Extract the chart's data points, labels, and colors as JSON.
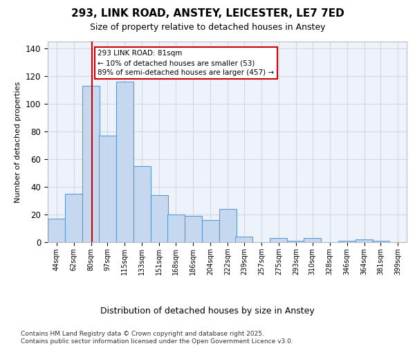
{
  "title_line1": "293, LINK ROAD, ANSTEY, LEICESTER, LE7 7ED",
  "title_line2": "Size of property relative to detached houses in Anstey",
  "xlabel": "Distribution of detached houses by size in Anstey",
  "ylabel": "Number of detached properties",
  "footer": "Contains HM Land Registry data © Crown copyright and database right 2025.\nContains public sector information licensed under the Open Government Licence v3.0.",
  "x_labels": [
    44,
    62,
    80,
    97,
    115,
    133,
    151,
    168,
    186,
    204,
    222,
    239,
    257,
    275,
    293,
    310,
    328,
    346,
    364,
    381,
    399
  ],
  "heights": [
    17,
    35,
    113,
    77,
    116,
    55,
    34,
    20,
    19,
    16,
    24,
    4,
    0,
    3,
    1,
    3,
    0,
    1,
    2,
    1,
    0
  ],
  "bar_color": "#c5d8f0",
  "bar_edge_color": "#5b9bd5",
  "vline_x": 81,
  "vline_color": "#cc0000",
  "annotation_text": "293 LINK ROAD: 81sqm\n← 10% of detached houses are smaller (53)\n89% of semi-detached houses are larger (457) →",
  "annotation_box_facecolor": "#ffffff",
  "annotation_box_edge": "#cc0000",
  "ylim": [
    0,
    145
  ],
  "yticks": [
    0,
    20,
    40,
    60,
    80,
    100,
    120,
    140
  ],
  "grid_color": "#d0d8e4",
  "bg_color": "#eef2fa",
  "bin_width": 18
}
